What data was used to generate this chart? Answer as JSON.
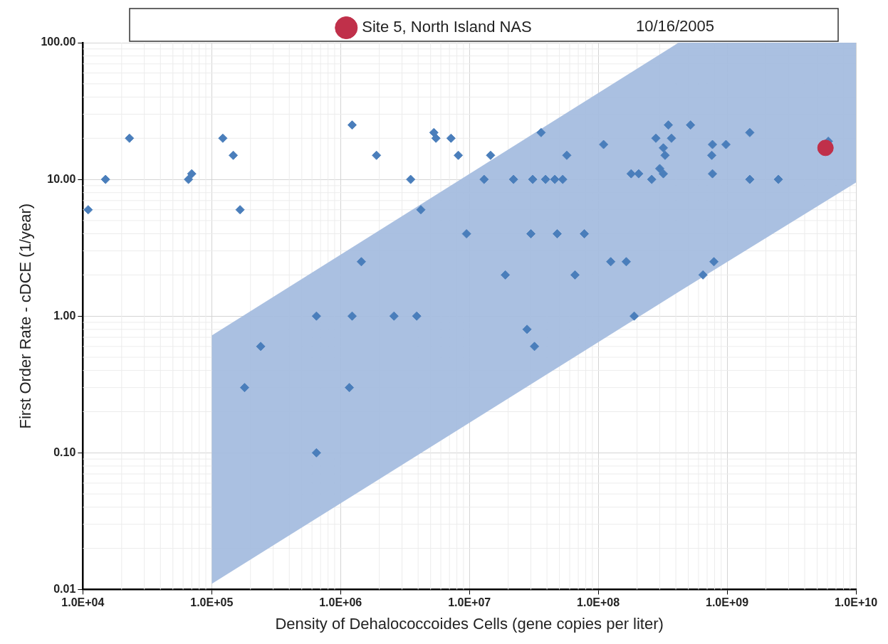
{
  "chart_data": {
    "type": "scatter",
    "xlabel": "Density of Dehalococcoides Cells (gene copies per liter)",
    "ylabel": "First Order Rate - cDCE (1/year)",
    "annotations": [
      "10/16/2005"
    ],
    "log": "xy",
    "grid": true,
    "legend": "top",
    "xlim": [
      10000,
      10000000000
    ],
    "xticks": [
      {
        "value": 10000,
        "label": "1.0E+04"
      },
      {
        "value": 100000,
        "label": "1.0E+05"
      },
      {
        "value": 1000000,
        "label": "1.0E+06"
      },
      {
        "value": 10000000,
        "label": "1.0E+07"
      },
      {
        "value": 100000000,
        "label": "1.0E+08"
      },
      {
        "value": 1000000000,
        "label": "1.0E+09"
      },
      {
        "value": 10000000000,
        "label": "1.0E+10"
      }
    ],
    "ylim": [
      0.01,
      100
    ],
    "yticks": [
      {
        "value": 0.01,
        "label": "0.01"
      },
      {
        "value": 0.1,
        "label": "0.10"
      },
      {
        "value": 1,
        "label": "1.00"
      },
      {
        "value": 10,
        "label": "10.00"
      },
      {
        "value": 100,
        "label": "100.00"
      }
    ],
    "series": [
      {
        "type": "line",
        "color": "#a4bcdf",
        "x": [
          100000,
          420000000,
          10000000000
        ],
        "values": [
          null,
          null,
          null
        ],
        "lower": [
          0.011,
          1.5,
          9.5
        ],
        "upper": [
          0.72,
          100,
          100
        ]
      },
      {
        "color": "#4a7ebb",
        "marker": "diamond",
        "x": [
          11000,
          15000,
          23000,
          66000,
          70000,
          122000,
          147000,
          166000,
          180000,
          240000,
          650000,
          650000,
          1170000,
          1230000,
          1230000,
          1450000,
          1900000,
          2600000,
          3500000,
          3900000,
          4200000,
          5300000,
          5500000,
          7200000,
          8200000,
          9500000,
          13000000,
          14600000,
          19000000,
          22000000,
          28000000,
          30000000,
          31000000,
          32000000,
          36000000,
          39000000,
          46000000,
          48000000,
          53000000,
          57000000,
          66000000,
          78000000,
          110000000,
          125000000,
          165000000,
          180000000,
          190000000,
          206000000,
          260000000,
          280000000,
          300000000,
          320000000,
          320000000,
          330000000,
          350000000,
          370000000,
          520000000,
          650000000,
          760000000,
          770000000,
          770000000,
          790000000,
          980000000,
          1500000000,
          1500000000,
          2500000000,
          6100000000
        ],
        "values": [
          6,
          10,
          20,
          10,
          11,
          20,
          15,
          6,
          0.3,
          0.6,
          1,
          0.1,
          0.3,
          1,
          25,
          2.5,
          15,
          1,
          10,
          1,
          6,
          22,
          20,
          20,
          15,
          4,
          10,
          15,
          2,
          10,
          0.8,
          4,
          10,
          0.6,
          22,
          10,
          10,
          4,
          10,
          15,
          2,
          4,
          18,
          2.5,
          2.5,
          11,
          1,
          11,
          10,
          20,
          12,
          11,
          17,
          15,
          25,
          20,
          25,
          2,
          15,
          18,
          11,
          2.5,
          18,
          22,
          10,
          10,
          19
        ]
      },
      {
        "name": "Site 5, North Island NAS",
        "color": "#c0304a",
        "marker": "circle",
        "x": [
          5800000000
        ],
        "values": [
          17
        ]
      }
    ]
  }
}
